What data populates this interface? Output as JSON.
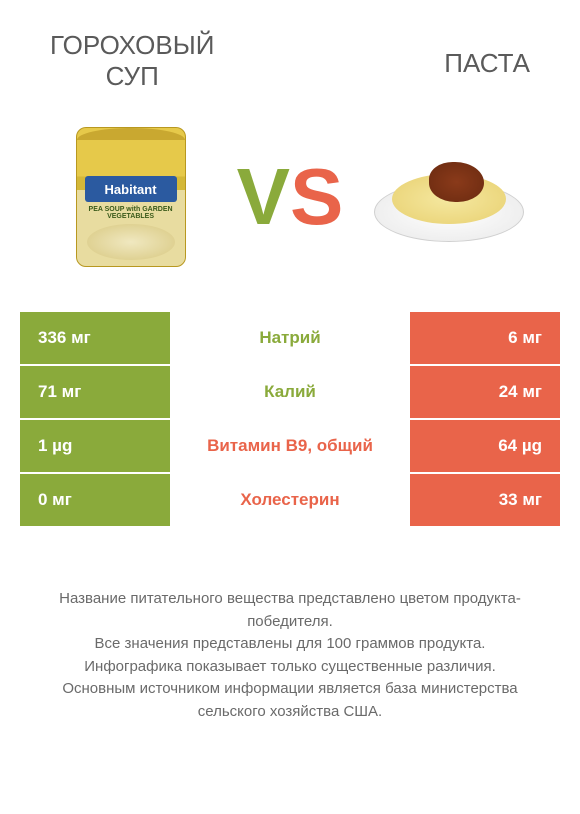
{
  "header": {
    "left_title": "ГОРОХОВЫЙ\nСУП",
    "right_title": "ПАСТА"
  },
  "vs": {
    "v": "V",
    "s": "S"
  },
  "colors": {
    "green": "#8aaa3b",
    "orange": "#e9644a",
    "text": "#5a5a5a",
    "background": "#ffffff"
  },
  "can": {
    "brand": "Habitant",
    "sub": "PEA SOUP with GARDEN VEGETABLES"
  },
  "rows": [
    {
      "left": "336 мг",
      "label": "Натрий",
      "right": "6 мг",
      "winner": "left"
    },
    {
      "left": "71 мг",
      "label": "Калий",
      "right": "24 мг",
      "winner": "left"
    },
    {
      "left": "1 µg",
      "label": "Витамин B9, общий",
      "right": "64 µg",
      "winner": "right"
    },
    {
      "left": "0 мг",
      "label": "Холестерин",
      "right": "33 мг",
      "winner": "right"
    }
  ],
  "footer": {
    "line1": "Название питательного вещества представлено цветом продукта-победителя.",
    "line2": "Все значения представлены для 100 граммов продукта.",
    "line3": "Инфографика показывает только существенные различия.",
    "line4": "Основным источником информации является база министерства сельского хозяйства США."
  }
}
